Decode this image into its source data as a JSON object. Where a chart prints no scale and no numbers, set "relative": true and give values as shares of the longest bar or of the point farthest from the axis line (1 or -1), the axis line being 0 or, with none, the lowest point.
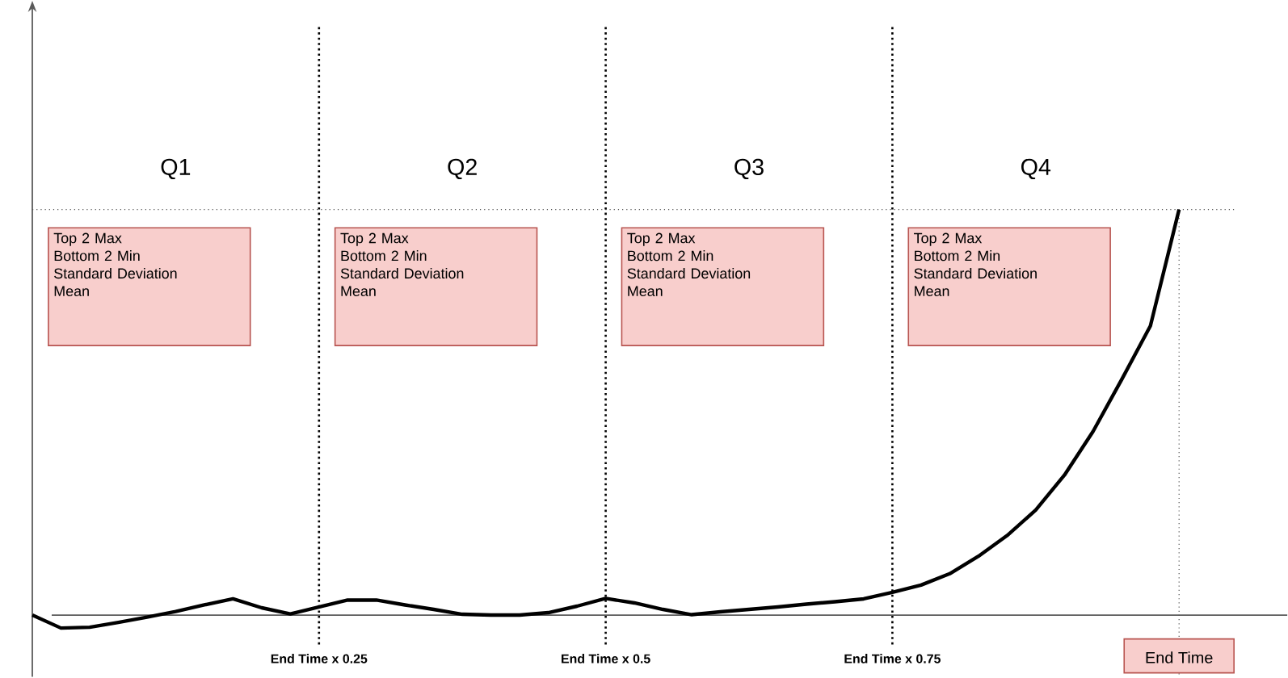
{
  "chart_data": {
    "type": "line",
    "relative": true,
    "categories": [
      null,
      null,
      null,
      null,
      null,
      null,
      null,
      null,
      null,
      null,
      null,
      null,
      null,
      null,
      null,
      null,
      null,
      null,
      null,
      null,
      null,
      null,
      null,
      null,
      null,
      null,
      null,
      null,
      null,
      null,
      null,
      null,
      null,
      null,
      null,
      null,
      null,
      null,
      null,
      null,
      null
    ],
    "series": [
      {
        "color": "#000000",
        "values": [
          0,
          -0.032,
          -0.03,
          -0.018,
          -0.005,
          0.009,
          0.025,
          0.04,
          0.018,
          0.003,
          0.02,
          0.037,
          0.037,
          0.025,
          0.014,
          0.002,
          0,
          0,
          0.006,
          0.022,
          0.041,
          0.03,
          0.014,
          0.001,
          0.008,
          0.014,
          0.02,
          0.027,
          0.033,
          0.04,
          0.056,
          0.074,
          0.102,
          0.145,
          0.196,
          0.259,
          0.345,
          0.453,
          0.581,
          0.713,
          1
        ]
      }
    ],
    "ref_lines": [
      {
        "axis": "y",
        "value": 1,
        "line_style": "dotted",
        "color": "#555555"
      }
    ],
    "annotations": [
      "Q1",
      "Q2",
      "Q3",
      "Q4",
      "Top 2 Max",
      "Bottom 2 Min",
      "Standard Deviation",
      "Mean",
      "Top 2 Max",
      "Bottom 2 Min",
      "Standard Deviation",
      "Mean",
      "Top 2 Max",
      "Bottom 2 Min",
      "Standard Deviation",
      "Mean",
      "Top 2 Max",
      "Bottom 2 Min",
      "Standard Deviation",
      "Mean",
      "End Time x 0.25",
      "End Time x 0.5",
      "End Time x 0.75",
      "End Time"
    ],
    "grid": "x",
    "marker": "none",
    "line_style": "solid"
  }
}
